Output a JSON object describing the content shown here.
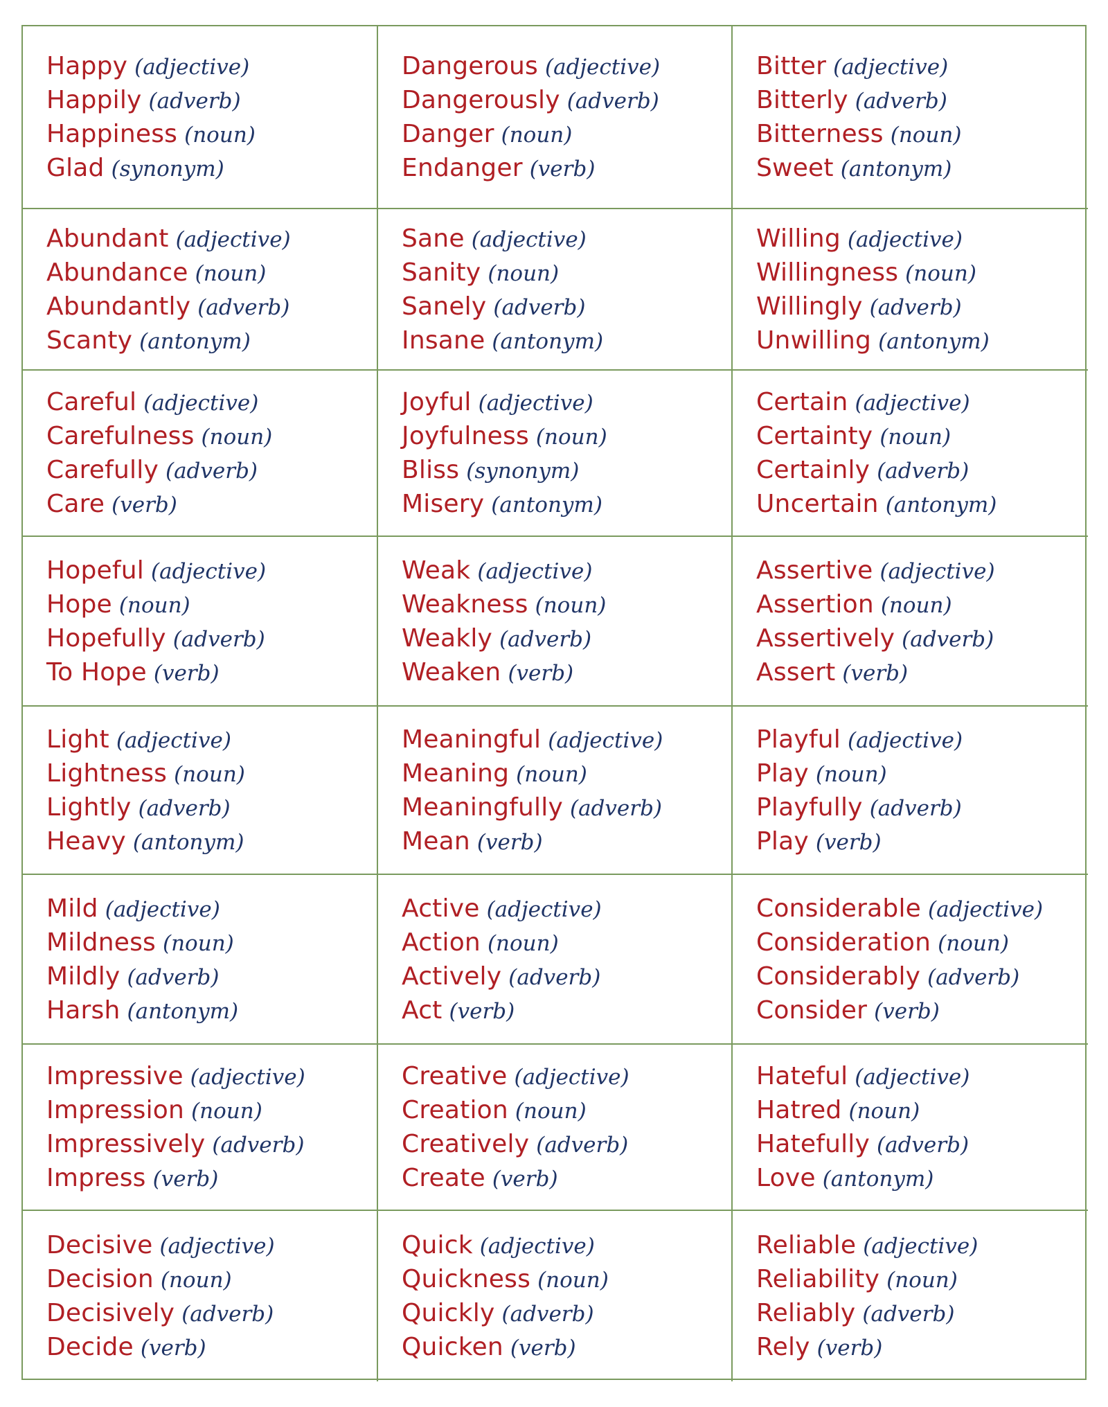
{
  "colors": {
    "word": "#b01f24",
    "part_of_speech": "#1f3466",
    "grid_border": "#7a9a5e"
  },
  "cells": [
    {
      "lines": [
        {
          "word": "Happy",
          "pos": "(adjective)"
        },
        {
          "word": "Happily",
          "pos": "(adverb)"
        },
        {
          "word": "Happiness",
          "pos": "(noun)"
        },
        {
          "word": "Glad",
          "pos": "(synonym)"
        }
      ]
    },
    {
      "lines": [
        {
          "word": "Dangerous",
          "pos": "(adjective)"
        },
        {
          "word": "Dangerously",
          "pos": "(adverb)"
        },
        {
          "word": "Danger",
          "pos": "(noun)"
        },
        {
          "word": "Endanger",
          "pos": "(verb)"
        }
      ]
    },
    {
      "lines": [
        {
          "word": "Bitter",
          "pos": "(adjective)"
        },
        {
          "word": "Bitterly",
          "pos": "(adverb)"
        },
        {
          "word": "Bitterness",
          "pos": "(noun)"
        },
        {
          "word": "Sweet",
          "pos": "(antonym)"
        }
      ]
    },
    {
      "lines": [
        {
          "word": "Abundant",
          "pos": "(adjective)"
        },
        {
          "word": "Abundance",
          "pos": "(noun)"
        },
        {
          "word": "Abundantly",
          "pos": "(adverb)"
        },
        {
          "word": "Scanty",
          "pos": "(antonym)"
        }
      ]
    },
    {
      "lines": [
        {
          "word": "Sane",
          "pos": "(adjective)"
        },
        {
          "word": "Sanity",
          "pos": "(noun)"
        },
        {
          "word": "Sanely",
          "pos": "(adverb)"
        },
        {
          "word": "Insane",
          "pos": "(antonym)"
        }
      ]
    },
    {
      "lines": [
        {
          "word": "Willing",
          "pos": "(adjective)"
        },
        {
          "word": "Willingness",
          "pos": "(noun)"
        },
        {
          "word": "Willingly",
          "pos": "(adverb)"
        },
        {
          "word": "Unwilling",
          "pos": "(antonym)"
        }
      ]
    },
    {
      "lines": [
        {
          "word": "Careful",
          "pos": "(adjective)"
        },
        {
          "word": "Carefulness",
          "pos": "(noun)"
        },
        {
          "word": "Carefully",
          "pos": "(adverb)"
        },
        {
          "word": "Care",
          "pos": "(verb)"
        }
      ]
    },
    {
      "lines": [
        {
          "word": "Joyful",
          "pos": "(adjective)"
        },
        {
          "word": "Joyfulness",
          "pos": "(noun)"
        },
        {
          "word": "Bliss",
          "pos": "(synonym)"
        },
        {
          "word": "Misery",
          "pos": "(antonym)"
        }
      ]
    },
    {
      "lines": [
        {
          "word": "Certain",
          "pos": "(adjective)"
        },
        {
          "word": "Certainty",
          "pos": "(noun)"
        },
        {
          "word": "Certainly",
          "pos": "(adverb)"
        },
        {
          "word": "Uncertain",
          "pos": "(antonym)"
        }
      ]
    },
    {
      "lines": [
        {
          "word": "Hopeful",
          "pos": "(adjective)"
        },
        {
          "word": "Hope",
          "pos": "(noun)"
        },
        {
          "word": "Hopefully",
          "pos": "(adverb)"
        },
        {
          "word": "To Hope",
          "pos": "(verb)"
        }
      ]
    },
    {
      "lines": [
        {
          "word": "Weak",
          "pos": "(adjective)"
        },
        {
          "word": "Weakness",
          "pos": "(noun)"
        },
        {
          "word": "Weakly",
          "pos": "(adverb)"
        },
        {
          "word": "Weaken",
          "pos": "(verb)"
        }
      ]
    },
    {
      "lines": [
        {
          "word": "Assertive",
          "pos": "(adjective)"
        },
        {
          "word": "Assertion",
          "pos": "(noun)"
        },
        {
          "word": "Assertively",
          "pos": "(adverb)"
        },
        {
          "word": "Assert",
          "pos": "(verb)"
        }
      ]
    },
    {
      "lines": [
        {
          "word": "Light",
          "pos": "(adjective)"
        },
        {
          "word": "Lightness",
          "pos": "(noun)"
        },
        {
          "word": "Lightly",
          "pos": "(adverb)"
        },
        {
          "word": "Heavy",
          "pos": "(antonym)"
        }
      ]
    },
    {
      "lines": [
        {
          "word": "Meaningful",
          "pos": "(adjective)"
        },
        {
          "word": "Meaning",
          "pos": "(noun)"
        },
        {
          "word": "Meaningfully",
          "pos": "(adverb)"
        },
        {
          "word": "Mean",
          "pos": "(verb)"
        }
      ]
    },
    {
      "lines": [
        {
          "word": "Playful",
          "pos": "(adjective)"
        },
        {
          "word": "Play",
          "pos": "(noun)"
        },
        {
          "word": "Playfully",
          "pos": "(adverb)"
        },
        {
          "word": "Play",
          "pos": "(verb)"
        }
      ]
    },
    {
      "lines": [
        {
          "word": "Mild",
          "pos": "(adjective)"
        },
        {
          "word": "Mildness",
          "pos": "(noun)"
        },
        {
          "word": "Mildly",
          "pos": "(adverb)"
        },
        {
          "word": "Harsh",
          "pos": "(antonym)"
        }
      ]
    },
    {
      "lines": [
        {
          "word": "Active",
          "pos": "(adjective)"
        },
        {
          "word": "Action",
          "pos": "(noun)"
        },
        {
          "word": "Actively",
          "pos": "(adverb)"
        },
        {
          "word": "Act",
          "pos": "(verb)"
        }
      ]
    },
    {
      "lines": [
        {
          "word": "Considerable",
          "pos": "(adjective)"
        },
        {
          "word": "Consideration",
          "pos": "(noun)"
        },
        {
          "word": "Considerably",
          "pos": "(adverb)"
        },
        {
          "word": "Consider",
          "pos": "(verb)"
        }
      ]
    },
    {
      "lines": [
        {
          "word": "Impressive",
          "pos": "(adjective)"
        },
        {
          "word": "Impression",
          "pos": "(noun)"
        },
        {
          "word": "Impressively",
          "pos": "(adverb)"
        },
        {
          "word": "Impress",
          "pos": "(verb)"
        }
      ]
    },
    {
      "lines": [
        {
          "word": "Creative",
          "pos": "(adjective)"
        },
        {
          "word": "Creation",
          "pos": "(noun)"
        },
        {
          "word": "Creatively",
          "pos": "(adverb)"
        },
        {
          "word": "Create",
          "pos": "(verb)"
        }
      ]
    },
    {
      "lines": [
        {
          "word": "Hateful",
          "pos": "(adjective)"
        },
        {
          "word": "Hatred",
          "pos": "(noun)"
        },
        {
          "word": "Hatefully",
          "pos": "(adverb)"
        },
        {
          "word": "Love",
          "pos": "(antonym)"
        }
      ]
    },
    {
      "lines": [
        {
          "word": "Decisive",
          "pos": "(adjective)"
        },
        {
          "word": "Decision",
          "pos": "(noun)"
        },
        {
          "word": "Decisively",
          "pos": "(adverb)"
        },
        {
          "word": "Decide",
          "pos": "(verb)"
        }
      ]
    },
    {
      "lines": [
        {
          "word": "Quick",
          "pos": "(adjective)"
        },
        {
          "word": "Quickness",
          "pos": "(noun)"
        },
        {
          "word": "Quickly",
          "pos": "(adverb)"
        },
        {
          "word": "Quicken",
          "pos": "(verb)"
        }
      ]
    },
    {
      "lines": [
        {
          "word": "Reliable",
          "pos": "(adjective)"
        },
        {
          "word": "Reliability",
          "pos": "(noun)"
        },
        {
          "word": "Reliably",
          "pos": "(adverb)"
        },
        {
          "word": "Rely",
          "pos": "(verb)"
        }
      ]
    }
  ]
}
